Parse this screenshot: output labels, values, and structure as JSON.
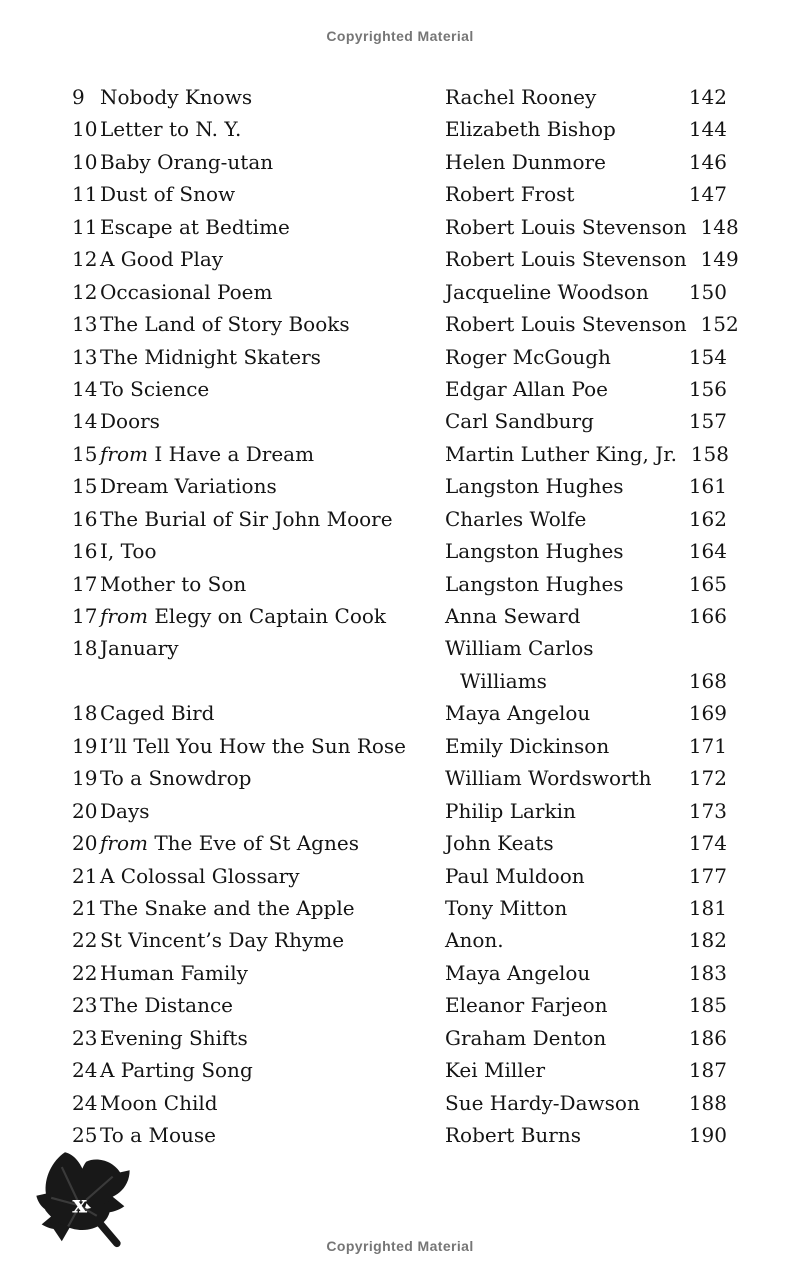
{
  "page": {
    "header_notice": "Copyrighted Material",
    "footer_notice": "Copyrighted Material",
    "folio": "x",
    "colors": {
      "background": "#ffffff",
      "text": "#141414",
      "notice_gray": "#767676",
      "leaf_black": "#181818"
    },
    "icons": [
      "leaf-ornament-icon"
    ]
  },
  "toc": {
    "columns": [
      "day",
      "title",
      "author",
      "page"
    ],
    "entries": [
      {
        "day": "9",
        "title": "Nobody Knows",
        "author": "Rachel Rooney",
        "page": "142"
      },
      {
        "day": "10",
        "title": "Letter to N. Y.",
        "author": "Elizabeth Bishop",
        "page": "144"
      },
      {
        "day": "10",
        "title": "Baby Orang-utan",
        "author": "Helen Dunmore",
        "page": "146"
      },
      {
        "day": "11",
        "title": "Dust of Snow",
        "author": "Robert Frost",
        "page": "147"
      },
      {
        "day": "11",
        "title": "Escape at Bedtime",
        "author": "Robert Louis Stevenson",
        "page": "148"
      },
      {
        "day": "12",
        "title": "A Good Play",
        "author": "Robert Louis Stevenson",
        "page": "149"
      },
      {
        "day": "12",
        "title": "Occasional Poem",
        "author": "Jacqueline Woodson",
        "page": "150"
      },
      {
        "day": "13",
        "title": "The Land of Story Books",
        "author": "Robert Louis Stevenson",
        "page": "152"
      },
      {
        "day": "13",
        "title": "The Midnight Skaters",
        "author": "Roger McGough",
        "page": "154"
      },
      {
        "day": "14",
        "title": "To Science",
        "author": "Edgar Allan Poe",
        "page": "156"
      },
      {
        "day": "14",
        "title": "Doors",
        "author": "Carl Sandburg",
        "page": "157"
      },
      {
        "day": "15",
        "italic_prefix": "from",
        "title": "I Have a Dream",
        "author": "Martin Luther King, Jr.",
        "page": "158"
      },
      {
        "day": "15",
        "title": "Dream Variations",
        "author": "Langston Hughes",
        "page": "161"
      },
      {
        "day": "16",
        "title": "The Burial of Sir John Moore",
        "author": "Charles Wolfe",
        "page": "162"
      },
      {
        "day": "16",
        "title": "I, Too",
        "author": "Langston Hughes",
        "page": "164"
      },
      {
        "day": "17",
        "title": "Mother to Son",
        "author": "Langston Hughes",
        "page": "165"
      },
      {
        "day": "17",
        "italic_prefix": "from",
        "title": "Elegy on Captain Cook",
        "author": "Anna Seward",
        "page": "166"
      },
      {
        "day": "18",
        "title": "January",
        "author": "William Carlos",
        "page": ""
      },
      {
        "day": "",
        "title": "",
        "author": "Williams",
        "author_indent": true,
        "page": "168"
      },
      {
        "day": "18",
        "title": "Caged Bird",
        "author": "Maya Angelou",
        "page": "169"
      },
      {
        "day": "19",
        "title": "I’ll Tell You How the Sun Rose",
        "author": "Emily Dickinson",
        "page": "171"
      },
      {
        "day": "19",
        "title": "To a Snowdrop",
        "author": "William Wordsworth",
        "page": "172"
      },
      {
        "day": "20",
        "title": "Days",
        "author": "Philip Larkin",
        "page": "173"
      },
      {
        "day": "20",
        "italic_prefix": "from",
        "title": "The Eve of St Agnes",
        "author": "John Keats",
        "page": "174"
      },
      {
        "day": "21",
        "title": "A Colossal Glossary",
        "author": "Paul Muldoon",
        "page": "177"
      },
      {
        "day": "21",
        "title": "The Snake and the Apple",
        "author": "Tony Mitton",
        "page": "181"
      },
      {
        "day": "22",
        "title": "St Vincent’s Day Rhyme",
        "author": "Anon.",
        "page": "182"
      },
      {
        "day": "22",
        "title": "Human Family",
        "author": "Maya Angelou",
        "page": "183"
      },
      {
        "day": "23",
        "title": "The Distance",
        "author": "Eleanor Farjeon",
        "page": "185"
      },
      {
        "day": "23",
        "title": "Evening Shifts",
        "author": "Graham Denton",
        "page": "186"
      },
      {
        "day": "24",
        "title": "A Parting Song",
        "author": "Kei Miller",
        "page": "187"
      },
      {
        "day": "24",
        "title": "Moon Child",
        "author": "Sue Hardy-Dawson",
        "page": "188"
      },
      {
        "day": "25",
        "title": "To a Mouse",
        "author": "Robert Burns",
        "page": "190"
      }
    ]
  }
}
